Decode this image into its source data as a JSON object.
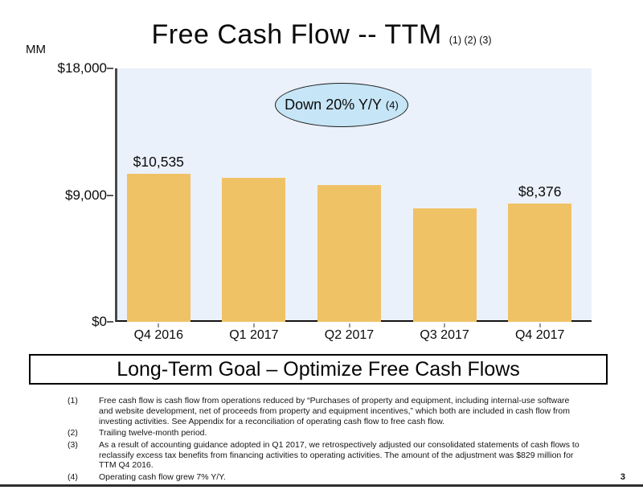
{
  "slide": {
    "title": "Free Cash Flow -- TTM",
    "title_refs": "(1) (2) (3)",
    "units_label": "MM",
    "page_number": "3"
  },
  "annotation": {
    "text": "Down 20% Y/Y",
    "ref": "(4)",
    "fill_color": "#C6E5F6"
  },
  "banner": {
    "text": "Long-Term Goal – Optimize Free Cash Flows"
  },
  "chart_data": {
    "type": "bar",
    "title": "Free Cash Flow -- TTM",
    "categories": [
      "Q4 2016",
      "Q1 2017",
      "Q2 2017",
      "Q3 2017",
      "Q4 2017"
    ],
    "values": [
      10535,
      10230,
      9710,
      8060,
      8376
    ],
    "bar_labels": [
      "$10,535",
      "",
      "",
      "",
      "$8,376"
    ],
    "labeled_values_note": "only first and last bars carry data labels; middle values estimated from axis",
    "xlabel": "",
    "ylabel": "MM",
    "ylim": [
      0,
      18000
    ],
    "yticks": [
      {
        "value": 18000,
        "label": "$18,000"
      },
      {
        "value": 9000,
        "label": "$9,000"
      },
      {
        "value": 0,
        "label": "$0"
      }
    ],
    "grid": false,
    "legend": "none",
    "bar_color": "#F0C266",
    "plot_bg": "#EBF1FA",
    "annotation": "Down 20% Y/Y (4)"
  },
  "footnotes": [
    {
      "num": "(1)",
      "lines": [
        "Free cash flow is cash flow from operations reduced by “Purchases of property and equipment, including internal-use software",
        "and website development, net of proceeds from property and equipment incentives,” which both are included in cash flow from",
        "investing activities. See Appendix for a reconciliation of operating cash flow to free cash flow."
      ]
    },
    {
      "num": "(2)",
      "lines": [
        "Trailing twelve-month period."
      ]
    },
    {
      "num": "(3)",
      "lines": [
        "As a result of accounting guidance adopted in Q1 2017, we retrospectively adjusted our consolidated statements of cash flows to",
        "reclassify excess tax benefits from financing activities to operating activities. The amount of the adjustment was $829 million for",
        "TTM Q4 2016."
      ]
    },
    {
      "num": "(4)",
      "lines": [
        "Operating cash flow grew 7% Y/Y."
      ]
    }
  ]
}
